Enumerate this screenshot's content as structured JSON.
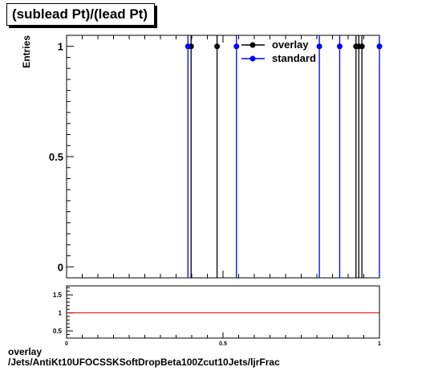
{
  "title": "(sublead Pt)/(lead Pt)",
  "footer": {
    "line1": "overlay",
    "line2": "/Jets/AntiKt10UFOCSSKSoftDropBeta100Zcut10Jets/ljrFrac"
  },
  "colors": {
    "overlay": "#000000",
    "standard": "#0000ff",
    "ratio_line": "#cc0000"
  },
  "chart_data": [
    {
      "type": "scatter",
      "title": "(sublead Pt)/(lead Pt)",
      "xlabel": "",
      "ylabel": "Entries",
      "xlim": [
        0,
        1
      ],
      "ylim": [
        -0.05,
        1.05
      ],
      "yticks": [
        0,
        0.5,
        1
      ],
      "ytick_labels": [
        "0",
        "0.5",
        "1"
      ],
      "legend_position": "top-right",
      "series": [
        {
          "name": "overlay",
          "color": "#000000",
          "x": [
            0.398,
            0.481,
            0.925,
            0.934,
            0.944
          ],
          "y": [
            1,
            1,
            1,
            1,
            1
          ]
        },
        {
          "name": "standard",
          "color": "#0000ff",
          "x": [
            0.388,
            0.543,
            0.808,
            0.873,
            1.0
          ],
          "y": [
            1,
            1,
            1,
            1,
            1
          ]
        }
      ]
    },
    {
      "type": "line",
      "title": "",
      "xlabel": "",
      "ylabel": "",
      "xlim": [
        0,
        1
      ],
      "ylim": [
        0.3,
        1.75
      ],
      "xticks": [
        0,
        0.5,
        1
      ],
      "xtick_labels": [
        "0",
        "0.5",
        "1"
      ],
      "yticks": [
        0.5,
        1,
        1.5
      ],
      "ytick_labels": [
        "0.5",
        "1",
        "1.5"
      ],
      "series": [
        {
          "name": "",
          "color": "#cc0000",
          "x": [
            0,
            1
          ],
          "y": [
            1,
            1
          ]
        }
      ]
    }
  ]
}
